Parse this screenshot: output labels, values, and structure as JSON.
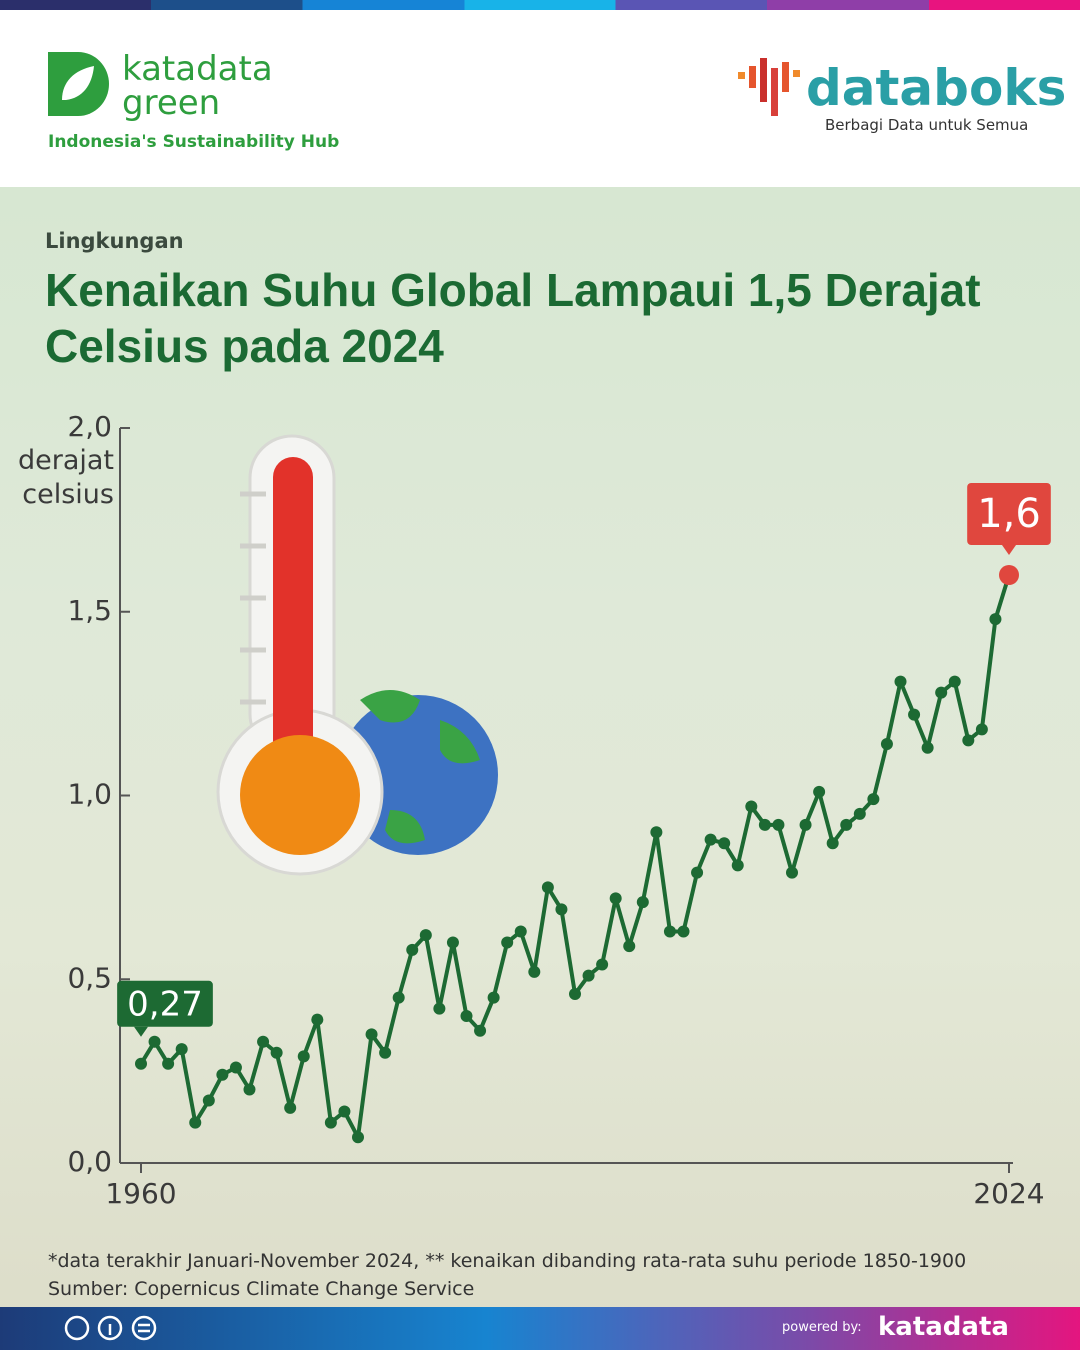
{
  "header": {
    "brand_line1": "katadata",
    "brand_line2": "green",
    "brand_tagline": "Indonesia's Sustainability Hub",
    "partner": "databoks",
    "partner_tagline": "Berbagi Data untuk Semua"
  },
  "chart_data": {
    "type": "line",
    "category": "Lingkungan",
    "title": "Kenaikan Suhu Global Lampaui 1,5 Derajat Celsius pada 2024",
    "y_label": "derajat celsius",
    "x": [
      1960,
      1961,
      1962,
      1963,
      1964,
      1965,
      1966,
      1967,
      1968,
      1969,
      1970,
      1971,
      1972,
      1973,
      1974,
      1975,
      1976,
      1977,
      1978,
      1979,
      1980,
      1981,
      1982,
      1983,
      1984,
      1985,
      1986,
      1987,
      1988,
      1989,
      1990,
      1991,
      1992,
      1993,
      1994,
      1995,
      1996,
      1997,
      1998,
      1999,
      2000,
      2001,
      2002,
      2003,
      2004,
      2005,
      2006,
      2007,
      2008,
      2009,
      2010,
      2011,
      2012,
      2013,
      2014,
      2015,
      2016,
      2017,
      2018,
      2019,
      2020,
      2021,
      2022,
      2023,
      2024
    ],
    "values": [
      0.27,
      0.33,
      0.27,
      0.31,
      0.11,
      0.17,
      0.24,
      0.26,
      0.2,
      0.33,
      0.3,
      0.15,
      0.29,
      0.39,
      0.11,
      0.14,
      0.07,
      0.35,
      0.3,
      0.45,
      0.58,
      0.62,
      0.42,
      0.6,
      0.4,
      0.36,
      0.45,
      0.6,
      0.63,
      0.52,
      0.75,
      0.69,
      0.46,
      0.51,
      0.54,
      0.72,
      0.59,
      0.71,
      0.9,
      0.63,
      0.63,
      0.79,
      0.88,
      0.87,
      0.81,
      0.97,
      0.92,
      0.92,
      0.79,
      0.92,
      1.01,
      0.87,
      0.92,
      0.95,
      0.99,
      1.14,
      1.31,
      1.22,
      1.13,
      1.28,
      1.31,
      1.15,
      1.18,
      1.48,
      1.6
    ],
    "value_labels": [
      "0,27",
      null,
      null,
      null,
      null,
      null,
      null,
      null,
      null,
      null,
      null,
      null,
      null,
      null,
      null,
      null,
      null,
      null,
      null,
      null,
      null,
      null,
      null,
      null,
      null,
      null,
      null,
      null,
      null,
      null,
      null,
      null,
      null,
      null,
      null,
      null,
      null,
      null,
      null,
      null,
      null,
      null,
      null,
      null,
      null,
      null,
      null,
      null,
      null,
      null,
      null,
      null,
      null,
      null,
      null,
      null,
      null,
      null,
      null,
      null,
      null,
      null,
      null,
      null,
      "1,6"
    ],
    "color": "#1d6a33",
    "last_point_color": "#e0473e",
    "xlim": [
      1958.5,
      2024.3
    ],
    "xticks": [
      1960,
      2024
    ],
    "ylim": [
      0,
      2.0
    ],
    "yticks": [
      {
        "value": 0,
        "label": "0,0"
      },
      {
        "value": 0.5,
        "label": "0,5"
      },
      {
        "value": 1.0,
        "label": "1,0"
      },
      {
        "value": 1.5,
        "label": "1,5"
      },
      {
        "value": 2.0,
        "label": "2,0"
      }
    ]
  },
  "footer": {
    "note": "*data terakhir Januari-November 2024, ** kenaikan dibanding rata-rata suhu periode 1850-1900",
    "source": "Sumber: Copernicus Climate Change Service",
    "powered": "powered by:",
    "powered_brand": "katadata"
  }
}
